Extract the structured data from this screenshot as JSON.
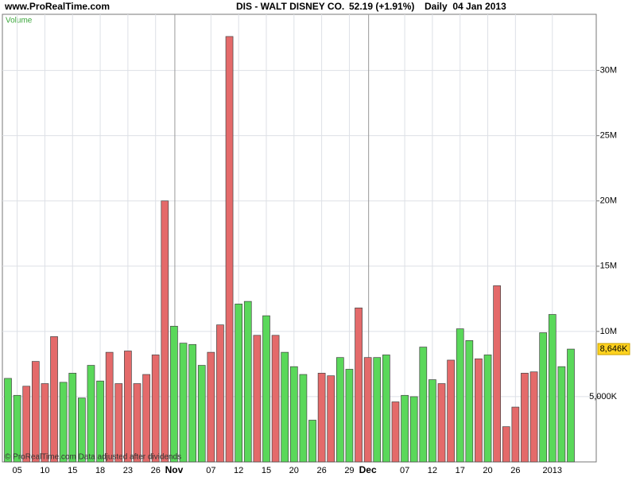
{
  "chart_data": {
    "type": "bar",
    "site": "www.ProRealTime.com",
    "title": "DIS - WALT DISNEY CO.",
    "price": "52.19 (+1.91%)",
    "subtitle": "Daily  04 Jan 2013",
    "panel_label": "Volume",
    "footer": "© ProRealTime.com Data adjusted after dividends",
    "categories": [
      null,
      "05",
      null,
      null,
      "10",
      null,
      null,
      "15",
      null,
      null,
      "18",
      null,
      null,
      "23",
      null,
      null,
      "26",
      null,
      "Nov",
      null,
      null,
      null,
      "07",
      null,
      null,
      "12",
      null,
      null,
      "15",
      null,
      null,
      "20",
      null,
      null,
      "26",
      null,
      null,
      "29",
      null,
      "Dec",
      null,
      null,
      null,
      "07",
      null,
      null,
      "12",
      null,
      null,
      "17",
      null,
      null,
      "20",
      null,
      null,
      "26",
      null,
      null,
      null,
      "2013",
      null,
      null
    ],
    "values": [
      6400000,
      5100000,
      5800000,
      7700000,
      6000000,
      9600000,
      6100000,
      6800000,
      4900000,
      7400000,
      6200000,
      8400000,
      6000000,
      8500000,
      6000000,
      6700000,
      8200000,
      20000000,
      10400000,
      9100000,
      9000000,
      7400000,
      8400000,
      10500000,
      32600000,
      12100000,
      12300000,
      9700000,
      11200000,
      9700000,
      8400000,
      7300000,
      6700000,
      3200000,
      6800000,
      6600000,
      8000000,
      7100000,
      11800000,
      8000000,
      8000000,
      8200000,
      4600000,
      5100000,
      5000000,
      8800000,
      6300000,
      6000000,
      7800000,
      10200000,
      9300000,
      7900000,
      8200000,
      13500000,
      2700000,
      4200000,
      6800000,
      6900000,
      9900000,
      11300000,
      7300000,
      8646000
    ],
    "colors": [
      "#5ad85a",
      "#5ad85a",
      "#e46a6a",
      "#e46a6a",
      "#e46a6a",
      "#e46a6a",
      "#5ad85a",
      "#5ad85a",
      "#5ad85a",
      "#5ad85a",
      "#5ad85a",
      "#e46a6a",
      "#e46a6a",
      "#e46a6a",
      "#e46a6a",
      "#e46a6a",
      "#e46a6a",
      "#e46a6a",
      "#5ad85a",
      "#5ad85a",
      "#5ad85a",
      "#5ad85a",
      "#e46a6a",
      "#e46a6a",
      "#e46a6a",
      "#5ad85a",
      "#5ad85a",
      "#e46a6a",
      "#5ad85a",
      "#e46a6a",
      "#5ad85a",
      "#5ad85a",
      "#5ad85a",
      "#5ad85a",
      "#e46a6a",
      "#e46a6a",
      "#5ad85a",
      "#5ad85a",
      "#e46a6a",
      "#e46a6a",
      "#5ad85a",
      "#5ad85a",
      "#e46a6a",
      "#5ad85a",
      "#5ad85a",
      "#5ad85a",
      "#5ad85a",
      "#e46a6a",
      "#e46a6a",
      "#5ad85a",
      "#5ad85a",
      "#e46a6a",
      "#5ad85a",
      "#e46a6a",
      "#e46a6a",
      "#e46a6a",
      "#e46a6a",
      "#e46a6a",
      "#5ad85a",
      "#5ad85a",
      "#5ad85a",
      "#5ad85a"
    ],
    "last_value_label": "8,646K",
    "ylim": [
      0,
      34300000
    ],
    "yticks": [
      {
        "value": 5000000,
        "label": "5,000K"
      },
      {
        "value": 10000000,
        "label": "10M"
      },
      {
        "value": 15000000,
        "label": "15M"
      },
      {
        "value": 20000000,
        "label": "20M"
      },
      {
        "value": 25000000,
        "label": "25M"
      },
      {
        "value": 30000000,
        "label": "30M"
      }
    ],
    "grid": true
  }
}
